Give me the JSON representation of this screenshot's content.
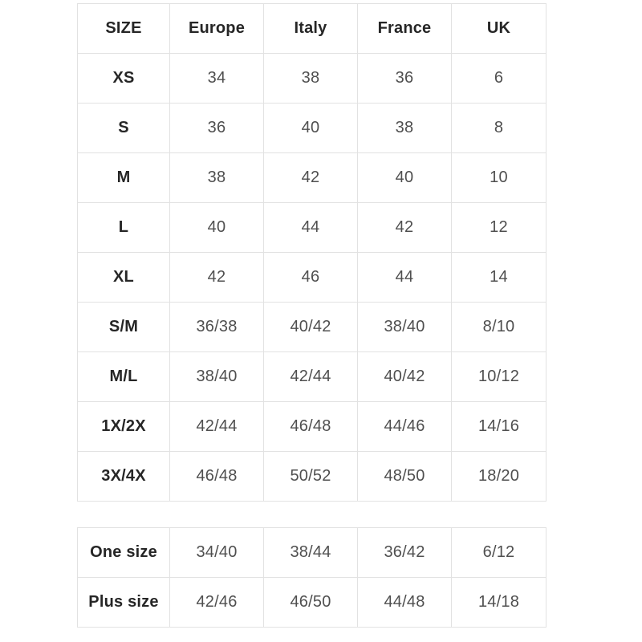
{
  "colors": {
    "border": "#e2e2e2",
    "heading_text": "#262626",
    "value_text": "#4f4f4f",
    "background": "#ffffff"
  },
  "chart_data": [
    {
      "type": "table",
      "columns": [
        "SIZE",
        "Europe",
        "Italy",
        "France",
        "UK"
      ],
      "rows": [
        [
          "XS",
          "34",
          "38",
          "36",
          "6"
        ],
        [
          "S",
          "36",
          "40",
          "38",
          "8"
        ],
        [
          "M",
          "38",
          "42",
          "40",
          "10"
        ],
        [
          "L",
          "40",
          "44",
          "42",
          "12"
        ],
        [
          "XL",
          "42",
          "46",
          "44",
          "14"
        ],
        [
          "S/M",
          "36/38",
          "40/42",
          "38/40",
          "8/10"
        ],
        [
          "M/L",
          "38/40",
          "42/44",
          "40/42",
          "10/12"
        ],
        [
          "1X/2X",
          "42/44",
          "46/48",
          "44/46",
          "14/16"
        ],
        [
          "3X/4X",
          "46/48",
          "50/52",
          "48/50",
          "18/20"
        ]
      ]
    },
    {
      "type": "table",
      "rows": [
        [
          "One size",
          "34/40",
          "38/44",
          "36/42",
          "6/12"
        ],
        [
          "Plus size",
          "42/46",
          "46/50",
          "44/48",
          "14/18"
        ]
      ]
    }
  ]
}
